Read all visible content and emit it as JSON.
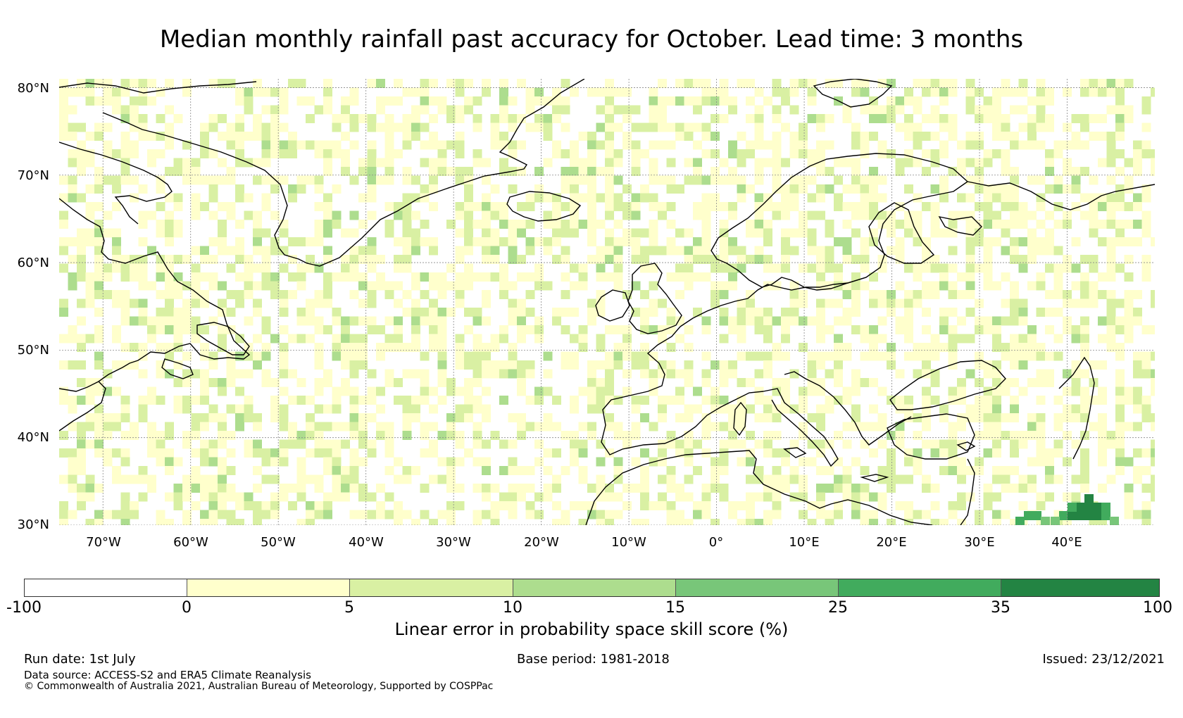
{
  "title": "Median monthly rainfall past accuracy for October. Lead time: 3 months",
  "map": {
    "lat_labels": [
      "80°N",
      "70°N",
      "60°N",
      "50°N",
      "40°N",
      "30°N"
    ],
    "lon_labels": [
      "70°W",
      "60°W",
      "50°W",
      "40°W",
      "30°W",
      "20°W",
      "10°W",
      "0°",
      "10°E",
      "20°E",
      "30°E",
      "40°E"
    ],
    "lat_range": [
      30,
      81
    ],
    "lon_range": [
      -75,
      50
    ]
  },
  "colorbar": {
    "label": "Linear error in probability space skill score (%)",
    "ticks": [
      "-100",
      "0",
      "5",
      "10",
      "15",
      "25",
      "35",
      "100"
    ],
    "colors": [
      "#ffffff",
      "#ffffcc",
      "#d9f0a3",
      "#addd8e",
      "#78c679",
      "#41ab5d",
      "#238443"
    ]
  },
  "footer": {
    "run_date": "Run date: 1st July",
    "base_period": "Base period: 1981-2018",
    "issued": "Issued: 23/12/2021",
    "data_source": "Data source: ACCESS-S2 and ERA5 Climate Reanalysis",
    "copyright": "© Commonwealth of Australia 2021, Australian Bureau of Meteorology, Supported by COSPPac"
  }
}
